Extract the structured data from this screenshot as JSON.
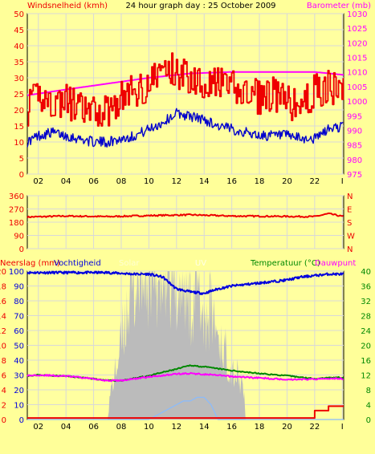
{
  "colors": {
    "background": "#ffff99",
    "plot_background": "#ffffa0",
    "grid": "#d8d8d8",
    "border": "#000000",
    "wind_gust": "#ee0000",
    "wind_avg": "#0000cc",
    "barometer": "#ff00ff",
    "direction": "#ee0000",
    "rain": "#ee0000",
    "humidity": "#0000dd",
    "solar": "#bbbbbb",
    "uv": "#88bbff",
    "temperature": "#008800",
    "dewpoint": "#ff00ff",
    "temp_axis": "#008800",
    "rain_axis": "#ee0000"
  },
  "chart_data": [
    {
      "type": "line",
      "title": "24 hour graph day : 25 October 2009",
      "left_label": "Windsnelheid (kmh)",
      "right_label": "Barometer (mb)",
      "xticks": [
        "02",
        "04",
        "06",
        "08",
        "10",
        "12",
        "14",
        "16",
        "18",
        "20",
        "22",
        "I"
      ],
      "y_left_ticks": [
        "0",
        "5",
        "10",
        "15",
        "20",
        "25",
        "30",
        "35",
        "40",
        "45",
        "50"
      ],
      "y_right_ticks": [
        "975",
        "980",
        "985",
        "990",
        "995",
        "1000",
        "1005",
        "1010",
        "1015",
        "1020",
        "1025",
        "1030"
      ],
      "ylim_left": [
        0,
        50
      ],
      "ylim_right": [
        975,
        1030
      ],
      "xlim_hours": [
        1.2,
        24.1
      ],
      "grid": true,
      "series": [
        {
          "name": "Windsnelheid (kmh)",
          "axis": "left",
          "style": "step",
          "x_hours": [
            1.2,
            2,
            3,
            4,
            5,
            6,
            7,
            8,
            9,
            10,
            11,
            12,
            13,
            14,
            15,
            16,
            17,
            18,
            19,
            20,
            21,
            22,
            23,
            24.1
          ],
          "values": [
            20,
            25,
            22,
            23,
            20,
            19,
            20,
            24,
            26,
            28,
            33,
            32,
            30,
            29,
            28,
            27,
            25,
            24,
            25,
            22,
            21,
            26,
            27,
            25
          ]
        },
        {
          "name": "Windsnelheid gemiddeld",
          "axis": "left",
          "x_hours": [
            1.2,
            2,
            3,
            4,
            5,
            6,
            7,
            8,
            9,
            10,
            11,
            12,
            13,
            14,
            15,
            16,
            17,
            18,
            19,
            20,
            21,
            22,
            23,
            24.1
          ],
          "values": [
            10,
            12,
            13,
            12,
            11,
            10,
            10,
            11,
            12,
            14,
            16,
            19,
            18,
            17,
            15,
            14,
            13,
            12,
            12,
            12,
            11,
            11,
            14,
            15
          ]
        },
        {
          "name": "Barometer (mb)",
          "axis": "right",
          "x_hours": [
            1.2,
            4,
            7,
            10,
            13,
            16,
            19,
            22,
            24.1
          ],
          "values": [
            1002,
            1004,
            1006,
            1008,
            1009.5,
            1010,
            1010,
            1010,
            1009
          ]
        }
      ]
    },
    {
      "type": "line",
      "y_left_ticks": [
        "0",
        "90",
        "180",
        "270",
        "360"
      ],
      "y_right_ticks": [
        "N",
        "W",
        "S",
        "E",
        "N"
      ],
      "ylim": [
        0,
        360
      ],
      "series": [
        {
          "name": "Windrichting",
          "x_hours": [
            1.2,
            4,
            7,
            10,
            13,
            16,
            19,
            22,
            23,
            24.1
          ],
          "values": [
            215,
            222,
            218,
            225,
            230,
            222,
            220,
            218,
            238,
            218
          ]
        }
      ]
    },
    {
      "type": "line",
      "left_label": "Neerslag (mm)",
      "left_label_2": "Vochtigheid",
      "solar_label": "Solar",
      "uv_label": "UV",
      "right_label": "Temperatuur (°C)",
      "right_label_2": "Dauwpunt",
      "xticks": [
        "02",
        "04",
        "06",
        "08",
        "10",
        "12",
        "14",
        "16",
        "18",
        "20",
        "22",
        "I"
      ],
      "y_hum_ticks": [
        "0",
        "10",
        "20",
        "30",
        "40",
        "50",
        "60",
        "70",
        "80",
        "90",
        "100"
      ],
      "y_rain_ticks": [
        "0",
        "2",
        "4",
        "6",
        "8",
        "10",
        "12",
        "14",
        "16",
        "18",
        "20"
      ],
      "y_temp_ticks": [
        "0",
        "4",
        "8",
        "12",
        "16",
        "20",
        "24",
        "28",
        "32",
        "36",
        "40"
      ],
      "ylim_humidity": [
        0,
        100
      ],
      "ylim_rain": [
        0,
        20
      ],
      "ylim_temperature": [
        0,
        40
      ],
      "series": [
        {
          "name": "Vochtigheid",
          "x_hours": [
            1.2,
            4,
            7,
            9,
            10,
            11,
            12,
            13,
            14,
            15,
            16,
            17,
            18,
            19,
            20,
            21,
            22,
            23,
            24.1
          ],
          "values": [
            99,
            99,
            99,
            98,
            98,
            96,
            88,
            86,
            85,
            88,
            90,
            91,
            92,
            93,
            94,
            96,
            97,
            98,
            98
          ]
        },
        {
          "name": "Neerslag (mm)",
          "x_hours": [
            1.2,
            5,
            10,
            15,
            20,
            21.5,
            22,
            23,
            24.1
          ],
          "values": [
            0.2,
            0.2,
            0.2,
            0.2,
            0.2,
            0.2,
            1.2,
            1.8,
            1.8
          ]
        },
        {
          "name": "Solar",
          "style": "area",
          "x_hours": [
            1.2,
            7.0,
            7.2,
            7.5,
            8,
            8.5,
            9,
            9.5,
            10,
            10.5,
            11,
            11.5,
            12,
            12.5,
            13,
            13.5,
            14,
            14.5,
            15,
            15.5,
            16,
            16.5,
            16.9,
            17.0,
            24.1
          ],
          "values": [
            0,
            0,
            15,
            25,
            45,
            70,
            80,
            85,
            88,
            86,
            85,
            80,
            75,
            82,
            70,
            78,
            60,
            65,
            50,
            40,
            30,
            25,
            15,
            0,
            0
          ]
        },
        {
          "name": "UV",
          "x_hours": [
            1.2,
            10,
            11,
            12,
            12.5,
            13,
            13.5,
            14,
            14.5,
            15,
            24.1
          ],
          "values": [
            0,
            0,
            1,
            2,
            2.5,
            2.5,
            3,
            3,
            2,
            0,
            0
          ]
        },
        {
          "name": "Temperatuur (°C)",
          "x_hours": [
            1.2,
            2,
            4,
            6,
            7,
            8,
            10,
            12,
            13,
            14,
            16,
            18,
            20,
            22,
            23,
            24.1
          ],
          "values": [
            11.8,
            12.0,
            11.7,
            11.0,
            10.5,
            10.5,
            11.8,
            13.6,
            14.6,
            14.2,
            13.2,
            12.4,
            11.8,
            11.0,
            11.3,
            11.3
          ]
        },
        {
          "name": "Dauwpunt",
          "x_hours": [
            1.2,
            2,
            4,
            6,
            7,
            8,
            10,
            12,
            13,
            14,
            16,
            18,
            20,
            22,
            23,
            24.1
          ],
          "values": [
            11.8,
            12.0,
            11.7,
            11.0,
            10.5,
            10.5,
            11.5,
            12.3,
            12.4,
            12.2,
            11.6,
            11.2,
            10.8,
            10.9,
            11.1,
            11.0
          ]
        }
      ]
    }
  ]
}
